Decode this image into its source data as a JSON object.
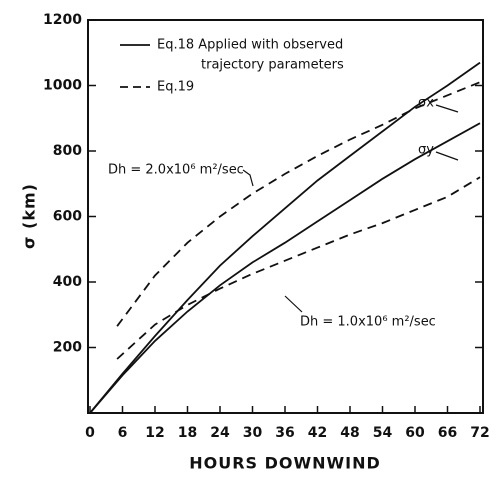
{
  "chart_data": {
    "type": "line",
    "ylabel": "σ (km)",
    "xlabel": "HOURS DOWNWIND",
    "xlim": [
      0,
      72
    ],
    "ylim": [
      0,
      1200
    ],
    "xticks": [
      0,
      6,
      12,
      18,
      24,
      30,
      36,
      42,
      48,
      54,
      60,
      66,
      72
    ],
    "yticks": [
      200,
      400,
      600,
      800,
      1000,
      1200
    ],
    "legend": [
      {
        "lines": [
          "Eq.18 Applied with observed",
          "trajectory parameters"
        ],
        "dashed": false
      },
      {
        "lines": [
          "Eq.19"
        ],
        "dashed": true
      }
    ],
    "series": [
      {
        "name": "σx",
        "dashed": false,
        "color": "#111",
        "x": [
          0,
          6,
          12,
          18,
          24,
          30,
          36,
          42,
          48,
          54,
          60,
          66,
          72
        ],
        "values": [
          0,
          120,
          235,
          345,
          450,
          540,
          625,
          710,
          785,
          860,
          935,
          1000,
          1070
        ]
      },
      {
        "name": "σy",
        "dashed": false,
        "color": "#111",
        "x": [
          0,
          6,
          12,
          18,
          24,
          30,
          36,
          42,
          48,
          54,
          60,
          66,
          72
        ],
        "values": [
          0,
          115,
          220,
          310,
          390,
          460,
          520,
          585,
          650,
          715,
          775,
          830,
          885
        ]
      },
      {
        "name": "Dh = 2.0x10⁶ m²/sec",
        "dashed": true,
        "color": "#111",
        "x": [
          5,
          12,
          18,
          24,
          30,
          36,
          42,
          48,
          54,
          60,
          66,
          72
        ],
        "values": [
          265,
          420,
          520,
          600,
          670,
          730,
          785,
          835,
          880,
          930,
          970,
          1010
        ]
      },
      {
        "name": "Dh = 1.0x10⁶ m²/sec",
        "dashed": true,
        "color": "#111",
        "x": [
          5,
          12,
          18,
          24,
          30,
          36,
          42,
          48,
          54,
          60,
          66,
          72
        ],
        "values": [
          165,
          270,
          330,
          380,
          425,
          465,
          505,
          545,
          580,
          620,
          660,
          720
        ]
      }
    ]
  }
}
